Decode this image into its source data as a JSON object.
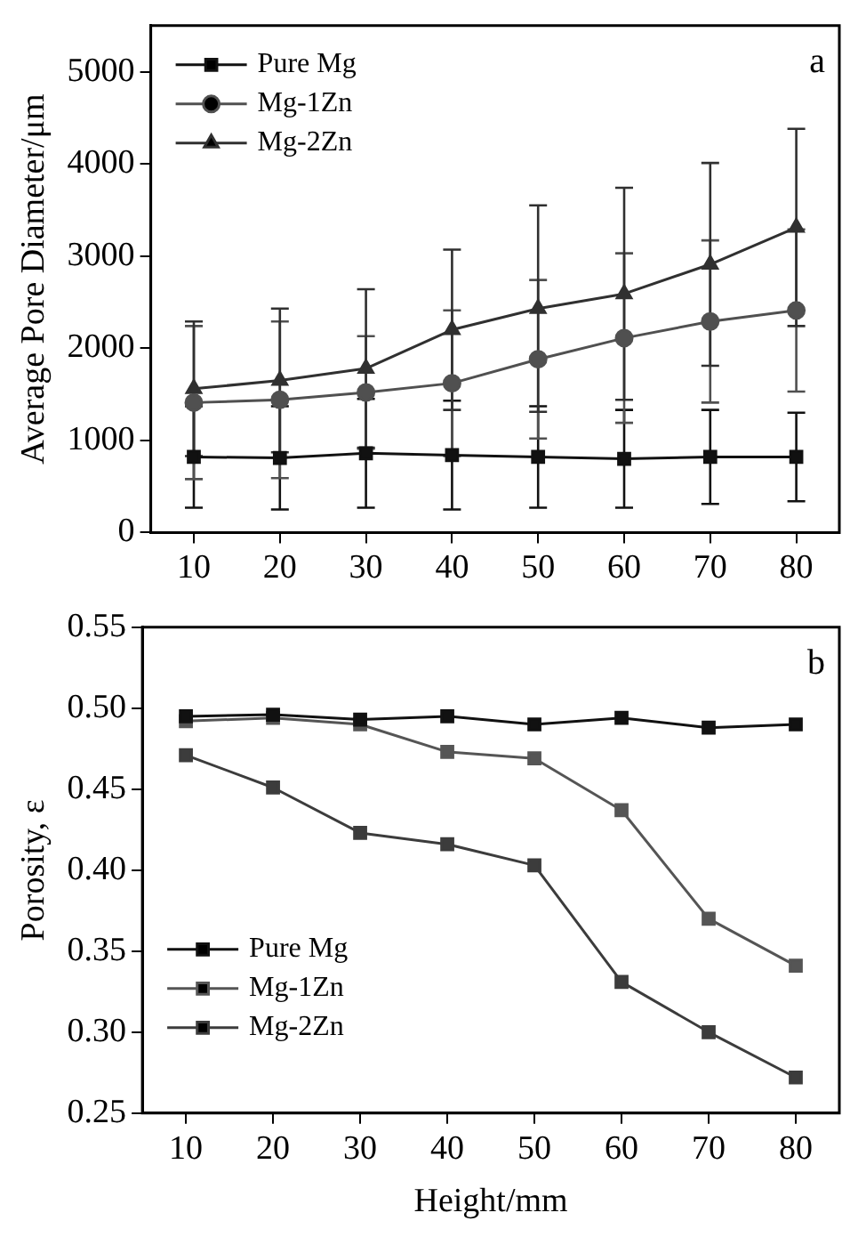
{
  "chart_data": [
    {
      "type": "line",
      "ylabel": "Average Pore Diameter/μm",
      "annotations": [
        "a"
      ],
      "x": [
        10,
        20,
        30,
        40,
        50,
        60,
        70,
        80
      ],
      "xlim": [
        5,
        85
      ],
      "xticks": [
        10,
        20,
        30,
        40,
        50,
        60,
        70,
        80
      ],
      "ylim": [
        0,
        5500
      ],
      "yticks": [
        0,
        1000,
        2000,
        3000,
        4000,
        5000
      ],
      "grid": false,
      "legend": "top left",
      "series": [
        {
          "name": "Pure Mg",
          "color": "#111111",
          "marker": "square",
          "values": [
            820,
            810,
            860,
            840,
            820,
            800,
            820,
            820
          ],
          "errors": [
            550,
            560,
            590,
            590,
            550,
            530,
            510,
            480
          ]
        },
        {
          "name": "Mg-1Zn",
          "color": "#505050",
          "marker": "circle",
          "values": [
            1410,
            1440,
            1520,
            1620,
            1880,
            2110,
            2290,
            2410
          ],
          "errors": [
            830,
            850,
            610,
            790,
            860,
            920,
            880,
            880
          ]
        },
        {
          "name": "Mg-2Zn",
          "color": "#303030",
          "marker": "triangle",
          "values": [
            1560,
            1650,
            1780,
            2200,
            2430,
            2590,
            2910,
            3310
          ],
          "errors": [
            730,
            780,
            860,
            870,
            1120,
            1150,
            1100,
            1070
          ]
        }
      ]
    },
    {
      "type": "line",
      "xlabel": "Height/mm",
      "ylabel": "Porosity, ε",
      "annotations": [
        "b"
      ],
      "x": [
        10,
        20,
        30,
        40,
        50,
        60,
        70,
        80
      ],
      "xlim": [
        5,
        85
      ],
      "xticks": [
        10,
        20,
        30,
        40,
        50,
        60,
        70,
        80
      ],
      "ylim": [
        0.25,
        0.55
      ],
      "yticks": [
        0.25,
        {
          "value": 0.3,
          "label": "0.30"
        },
        0.35,
        {
          "value": 0.4,
          "label": "0.40"
        },
        0.45,
        {
          "value": 0.5,
          "label": "0.50"
        },
        0.55
      ],
      "grid": false,
      "legend": "bottom left",
      "series": [
        {
          "name": "Pure Mg",
          "color": "#111111",
          "marker": "square",
          "values": [
            0.495,
            0.496,
            0.493,
            0.495,
            0.49,
            0.494,
            0.488,
            0.49
          ]
        },
        {
          "name": "Mg-1Zn",
          "color": "#555555",
          "marker": "square",
          "values": [
            0.492,
            0.494,
            0.49,
            0.473,
            0.469,
            0.437,
            0.37,
            0.341
          ]
        },
        {
          "name": "Mg-2Zn",
          "color": "#3c3c3c",
          "marker": "square",
          "values": [
            0.471,
            0.451,
            0.423,
            0.416,
            0.403,
            0.331,
            0.3,
            0.272
          ]
        }
      ]
    }
  ]
}
